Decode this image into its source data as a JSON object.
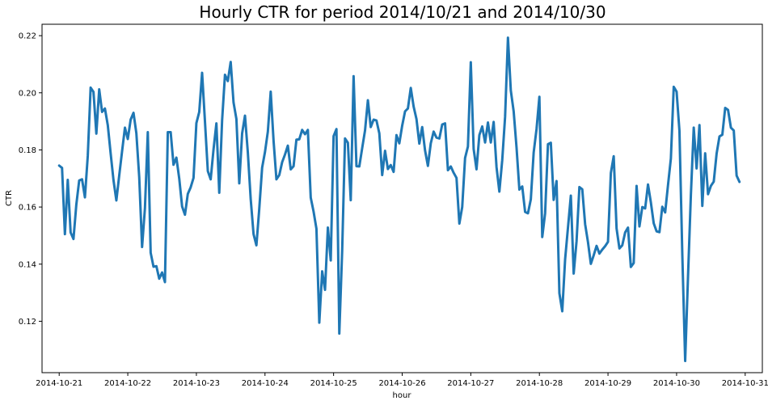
{
  "chart_data": {
    "type": "line",
    "title": "Hourly CTR for period  2014/10/21 and 2014/10/30",
    "xlabel": "hour",
    "ylabel": "CTR",
    "x_start": "2014-10-21 00:00",
    "x_step_hours": 1,
    "xlim": [
      "2014-10-20 18:00",
      "2014-10-31 06:00"
    ],
    "ylim": [
      0.102,
      0.224
    ],
    "x_ticks": [
      "2014-10-21",
      "2014-10-22",
      "2014-10-23",
      "2014-10-24",
      "2014-10-25",
      "2014-10-26",
      "2014-10-27",
      "2014-10-28",
      "2014-10-29",
      "2014-10-30",
      "2014-10-31"
    ],
    "y_ticks": [
      0.12,
      0.14,
      0.16,
      0.18,
      0.2,
      0.22
    ],
    "y_tick_labels": [
      "0.12",
      "0.14",
      "0.16",
      "0.18",
      "0.20",
      "0.22"
    ],
    "grid": false,
    "legend": false,
    "series": [
      {
        "color": "#1f77b4",
        "values": [
          0.1745,
          0.1737,
          0.1505,
          0.1695,
          0.1511,
          0.1488,
          0.1609,
          0.1693,
          0.1697,
          0.1634,
          0.1779,
          0.2018,
          0.2003,
          0.1857,
          0.2012,
          0.1933,
          0.1945,
          0.1887,
          0.1788,
          0.1694,
          0.1623,
          0.171,
          0.1795,
          0.1878,
          0.1838,
          0.1906,
          0.193,
          0.1858,
          0.1705,
          0.146,
          0.1596,
          0.1862,
          0.144,
          0.1391,
          0.1393,
          0.1349,
          0.1371,
          0.1337,
          0.1862,
          0.1862,
          0.1748,
          0.1773,
          0.17,
          0.1602,
          0.1573,
          0.1646,
          0.1669,
          0.1702,
          0.1894,
          0.1933,
          0.207,
          0.1899,
          0.1726,
          0.1697,
          0.1802,
          0.1893,
          0.165,
          0.1904,
          0.2063,
          0.2041,
          0.2108,
          0.1966,
          0.1908,
          0.1683,
          0.1858,
          0.192,
          0.1791,
          0.1628,
          0.1505,
          0.1466,
          0.1594,
          0.1738,
          0.1793,
          0.1864,
          0.2004,
          0.1832,
          0.1697,
          0.1712,
          0.1757,
          0.1784,
          0.1815,
          0.1732,
          0.1743,
          0.1836,
          0.1837,
          0.187,
          0.1855,
          0.187,
          0.1633,
          0.1584,
          0.1524,
          0.1195,
          0.1375,
          0.131,
          0.1528,
          0.1413,
          0.1848,
          0.1873,
          0.1157,
          0.1446,
          0.184,
          0.1825,
          0.1624,
          0.2058,
          0.1743,
          0.1742,
          0.1806,
          0.1868,
          0.1974,
          0.188,
          0.1906,
          0.1903,
          0.1858,
          0.1712,
          0.1797,
          0.1733,
          0.1747,
          0.1723,
          0.1852,
          0.1823,
          0.1885,
          0.1935,
          0.1945,
          0.2017,
          0.1952,
          0.1908,
          0.1822,
          0.188,
          0.1798,
          0.1744,
          0.1823,
          0.1864,
          0.1843,
          0.184,
          0.1889,
          0.1893,
          0.1729,
          0.1742,
          0.172,
          0.1702,
          0.1542,
          0.16,
          0.1772,
          0.1812,
          0.2107,
          0.1803,
          0.1732,
          0.1852,
          0.1882,
          0.1826,
          0.1896,
          0.1826,
          0.1898,
          0.174,
          0.1654,
          0.1764,
          0.1916,
          0.2193,
          0.2008,
          0.1935,
          0.1809,
          0.1661,
          0.1672,
          0.1583,
          0.1578,
          0.1627,
          0.1791,
          0.1873,
          0.1986,
          0.1495,
          0.1578,
          0.182,
          0.1825,
          0.1625,
          0.1691,
          0.1298,
          0.1235,
          0.1417,
          0.1528,
          0.164,
          0.1367,
          0.148,
          0.167,
          0.1662,
          0.154,
          0.1477,
          0.1401,
          0.1431,
          0.1464,
          0.1437,
          0.1451,
          0.1463,
          0.1478,
          0.1719,
          0.1778,
          0.1525,
          0.1455,
          0.1466,
          0.1511,
          0.1528,
          0.139,
          0.1404,
          0.1674,
          0.1532,
          0.16,
          0.1595,
          0.1679,
          0.1616,
          0.1543,
          0.1515,
          0.1512,
          0.1601,
          0.1581,
          0.1677,
          0.177,
          0.2021,
          0.2004,
          0.1867,
          0.1434,
          0.1061,
          0.1357,
          0.1643,
          0.1878,
          0.1735,
          0.1887,
          0.1604,
          0.1788,
          0.1645,
          0.1674,
          0.1689,
          0.1787,
          0.1847,
          0.1853,
          0.1947,
          0.194,
          0.1878,
          0.1868,
          0.171,
          0.1688
        ]
      }
    ]
  }
}
